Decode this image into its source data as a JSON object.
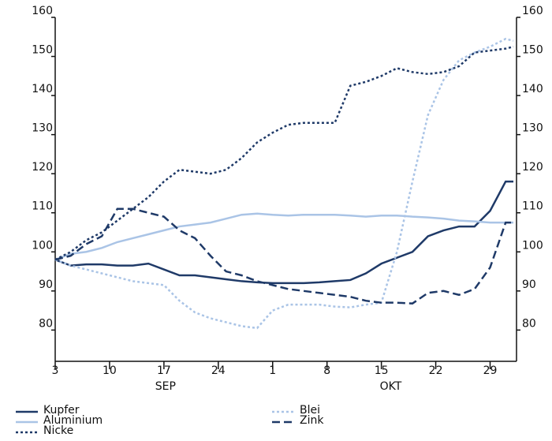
{
  "chart_data": {
    "type": "line",
    "x": [
      0,
      2,
      4,
      6,
      8,
      10,
      12,
      14,
      16,
      18,
      20,
      22,
      24,
      26,
      28,
      30,
      32,
      34,
      36,
      38,
      40,
      42,
      44,
      46,
      48,
      50,
      52,
      54,
      56,
      58,
      59
    ],
    "xlim": [
      0,
      59.4
    ],
    "xticks": [
      {
        "value": 0,
        "label": "3"
      },
      {
        "value": 7,
        "label": "10"
      },
      {
        "value": 14,
        "label": "17"
      },
      {
        "value": 21,
        "label": "24"
      },
      {
        "value": 28,
        "label": "1"
      },
      {
        "value": 35,
        "label": "8"
      },
      {
        "value": 42,
        "label": "15"
      },
      {
        "value": 49,
        "label": "22"
      },
      {
        "value": 56,
        "label": "29"
      }
    ],
    "annotations": [
      {
        "text": "SEP",
        "x": 14.2
      },
      {
        "text": "OKT",
        "x": 43.2
      }
    ],
    "ylim": [
      72,
      160
    ],
    "yticks": [
      80,
      90,
      100,
      110,
      120,
      130,
      140,
      150,
      160
    ],
    "y2lim": [
      72,
      160
    ],
    "y2ticks": [
      80,
      90,
      100,
      110,
      120,
      130,
      140,
      150,
      160
    ],
    "series": [
      {
        "name": "Kupfer",
        "color": "#1f3a68",
        "style": "solid",
        "values": [
          98,
          96.5,
          96.8,
          96.8,
          96.5,
          96.5,
          97,
          95.5,
          94,
          94,
          93.5,
          93,
          92.5,
          92.2,
          92,
          92,
          92,
          92.2,
          92.5,
          92.8,
          94.5,
          97,
          98.5,
          100,
          104,
          105.5,
          106.5,
          106.5,
          110.5,
          118,
          118
        ]
      },
      {
        "name": "Aluminium",
        "color": "#aac4e6",
        "style": "solid",
        "values": [
          98,
          99.5,
          100,
          101,
          102.5,
          103.5,
          104.5,
          105.5,
          106.5,
          107,
          107.5,
          108.5,
          109.5,
          109.8,
          109.5,
          109.3,
          109.5,
          109.5,
          109.5,
          109.3,
          109,
          109.3,
          109.3,
          109,
          108.8,
          108.5,
          108,
          107.8,
          107.5,
          107.5,
          107.5
        ]
      },
      {
        "name": "Nicke",
        "color": "#1f3a68",
        "style": "dotted",
        "values": [
          98,
          100,
          103,
          105,
          108,
          111,
          114,
          118,
          121,
          120.5,
          120,
          121,
          124,
          128,
          130.5,
          132.5,
          133,
          133,
          133,
          142.5,
          143.5,
          145,
          147,
          146,
          145.5,
          146,
          147.5,
          151,
          151.5,
          152,
          152.5
        ]
      },
      {
        "name": "Blei",
        "color": "#aac4e6",
        "style": "dotted",
        "values": [
          98,
          96.5,
          95.5,
          94.5,
          93.5,
          92.5,
          92,
          91.5,
          87.5,
          84.5,
          83,
          82,
          81,
          80.5,
          85,
          86.5,
          86.5,
          86.5,
          86,
          85.8,
          86.5,
          87,
          100,
          118,
          135,
          144,
          149,
          151,
          152.5,
          154.5,
          154
        ]
      },
      {
        "name": "Zink",
        "color": "#1f3a68",
        "style": "dashed",
        "values": [
          98,
          99,
          102,
          104,
          111,
          111,
          110,
          109,
          105.5,
          103.5,
          99,
          95,
          94,
          92.5,
          91.5,
          90.5,
          90,
          89.5,
          89,
          88.5,
          87.5,
          87,
          87,
          86.8,
          89.5,
          90,
          89,
          90.5,
          96,
          107.5,
          107.5
        ]
      }
    ]
  }
}
